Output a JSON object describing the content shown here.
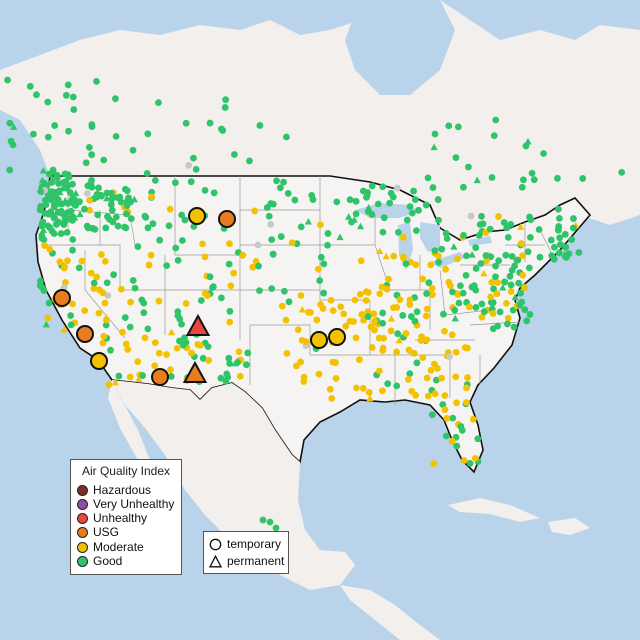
{
  "legend": {
    "title": "Air Quality Index",
    "items": [
      {
        "label": "Hazardous",
        "color": "#7e2f22"
      },
      {
        "label": "Very Unhealthy",
        "color": "#8f4fa8"
      },
      {
        "label": "Unhealthy",
        "color": "#e8473c"
      },
      {
        "label": "USG",
        "color": "#e87d1e"
      },
      {
        "label": "Moderate",
        "color": "#f2c200"
      },
      {
        "label": "Good",
        "color": "#2fc46a"
      }
    ]
  },
  "type_legend": {
    "temporary": "temporary",
    "permanent": "permanent"
  },
  "colors": {
    "water": "#b9d3ea",
    "land": "#f3efec",
    "us_land": "#f6f4f2",
    "good": "#2fc46a",
    "moderate": "#f2c200",
    "usg": "#e87d1e",
    "unhealthy": "#e8473c",
    "no_data": "#c8c8c8"
  },
  "large_markers": [
    {
      "place": "Montana west",
      "category": "moderate",
      "type": "temporary"
    },
    {
      "place": "Montana east",
      "category": "usg",
      "type": "temporary"
    },
    {
      "place": "Northern California",
      "category": "usg",
      "type": "temporary"
    },
    {
      "place": "Central California",
      "category": "usg",
      "type": "temporary"
    },
    {
      "place": "Southern California",
      "category": "moderate",
      "type": "temporary"
    },
    {
      "place": "Arizona",
      "category": "usg",
      "type": "temporary"
    },
    {
      "place": "New Mexico north",
      "category": "unhealthy",
      "type": "permanent"
    },
    {
      "place": "New Mexico south",
      "category": "usg",
      "type": "permanent"
    },
    {
      "place": "Oklahoma west",
      "category": "moderate",
      "type": "temporary"
    },
    {
      "place": "Oklahoma east",
      "category": "moderate",
      "type": "temporary"
    }
  ]
}
